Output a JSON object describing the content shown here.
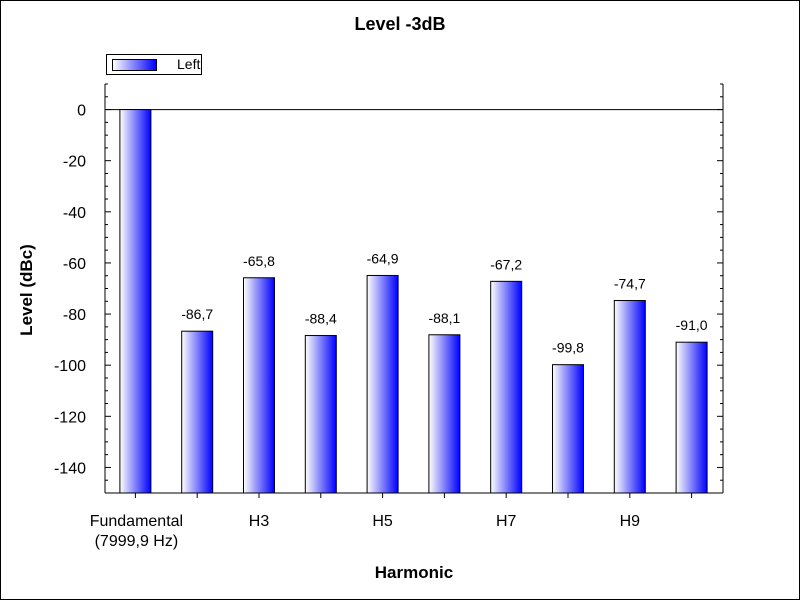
{
  "chart_data": {
    "type": "bar",
    "title": "Level -3dB",
    "xlabel": "Harmonic",
    "ylabel": "Level (dBc)",
    "legend": {
      "entries": [
        "Left"
      ],
      "placement": "top-left"
    },
    "categories": [
      "Fundamental\n(7999,9 Hz)",
      "",
      "H3",
      "",
      "H5",
      "",
      "H7",
      "",
      "H9",
      ""
    ],
    "series": [
      {
        "name": "Left",
        "values": [
          0,
          -86.7,
          -65.8,
          -88.4,
          -64.9,
          -88.1,
          -67.2,
          -99.8,
          -74.7,
          -91.0
        ],
        "data_labels": [
          "",
          "-86,7",
          "-65,8",
          "-88,4",
          "-64,9",
          "-88,1",
          "-67,2",
          "-99,8",
          "-74,7",
          "-91,0"
        ]
      }
    ],
    "ylim": [
      -150,
      10
    ],
    "yticks": [
      0,
      -20,
      -40,
      -60,
      -80,
      -100,
      -120,
      -140
    ],
    "ytick_labels": [
      "0",
      "-20",
      "-40",
      "-60",
      "-80",
      "-100",
      "-120",
      "-140"
    ],
    "bar_fill": "gradient white to #0000ff",
    "grid": false
  }
}
